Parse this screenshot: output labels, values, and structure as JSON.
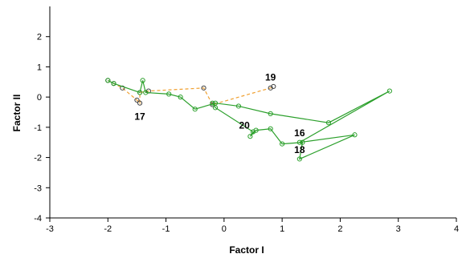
{
  "chart_data": {
    "type": "scatter",
    "xlabel": "Factor I",
    "ylabel": "Factor II",
    "xlim": [
      -3,
      4
    ],
    "ylim": [
      -4,
      3
    ],
    "x_ticks": [
      -3,
      -2,
      -1,
      0,
      1,
      2,
      3,
      4
    ],
    "y_ticks": [
      -4,
      -3,
      -2,
      -1,
      0,
      1,
      2
    ],
    "grid": false,
    "series": [
      {
        "color": "#f0a030",
        "line_style": "dashed",
        "points": [
          {
            "x": -2.0,
            "y": 0.55
          },
          {
            "x": -1.9,
            "y": 0.45
          },
          {
            "x": -1.75,
            "y": 0.3
          },
          {
            "x": -1.5,
            "y": -0.1
          },
          {
            "x": -1.45,
            "y": -0.2
          },
          {
            "x": -1.45,
            "y": 0.15
          },
          {
            "x": -1.3,
            "y": 0.2
          },
          {
            "x": -0.35,
            "y": 0.3
          },
          {
            "x": -0.2,
            "y": -0.25
          },
          {
            "x": 0.8,
            "y": 0.3
          },
          {
            "x": 0.85,
            "y": 0.35
          }
        ]
      },
      {
        "color": "#2ca02c",
        "line_style": "solid",
        "points": [
          {
            "x": -2.0,
            "y": 0.55
          },
          {
            "x": -1.9,
            "y": 0.45
          },
          {
            "x": -1.45,
            "y": 0.15
          },
          {
            "x": -1.4,
            "y": 0.55
          },
          {
            "x": -1.35,
            "y": 0.15
          },
          {
            "x": -0.95,
            "y": 0.1
          },
          {
            "x": -0.75,
            "y": 0.0
          },
          {
            "x": -0.5,
            "y": -0.4
          },
          {
            "x": -0.15,
            "y": -0.2
          },
          {
            "x": 0.25,
            "y": -0.3
          },
          {
            "x": 0.8,
            "y": -0.55
          },
          {
            "x": 1.8,
            "y": -0.85
          },
          {
            "x": 2.85,
            "y": 0.2
          },
          {
            "x": 1.3,
            "y": -1.5
          },
          {
            "x": 2.25,
            "y": -1.25
          },
          {
            "x": 1.3,
            "y": -2.05
          },
          {
            "x": 1.35,
            "y": -1.5
          },
          {
            "x": 1.0,
            "y": -1.55
          },
          {
            "x": 0.8,
            "y": -1.05
          },
          {
            "x": 0.55,
            "y": -1.1
          },
          {
            "x": 0.45,
            "y": -1.3
          },
          {
            "x": 0.5,
            "y": -1.15
          },
          {
            "x": -0.15,
            "y": -0.35
          },
          {
            "x": -0.2,
            "y": -0.2
          }
        ]
      }
    ],
    "annotations": [
      {
        "text": "19",
        "x": 0.8,
        "y": 0.55
      },
      {
        "text": "17",
        "x": -1.45,
        "y": -0.75
      },
      {
        "text": "20",
        "x": 0.35,
        "y": -1.05
      },
      {
        "text": "16",
        "x": 1.3,
        "y": -1.3
      },
      {
        "text": "18",
        "x": 1.3,
        "y": -1.85
      }
    ]
  }
}
